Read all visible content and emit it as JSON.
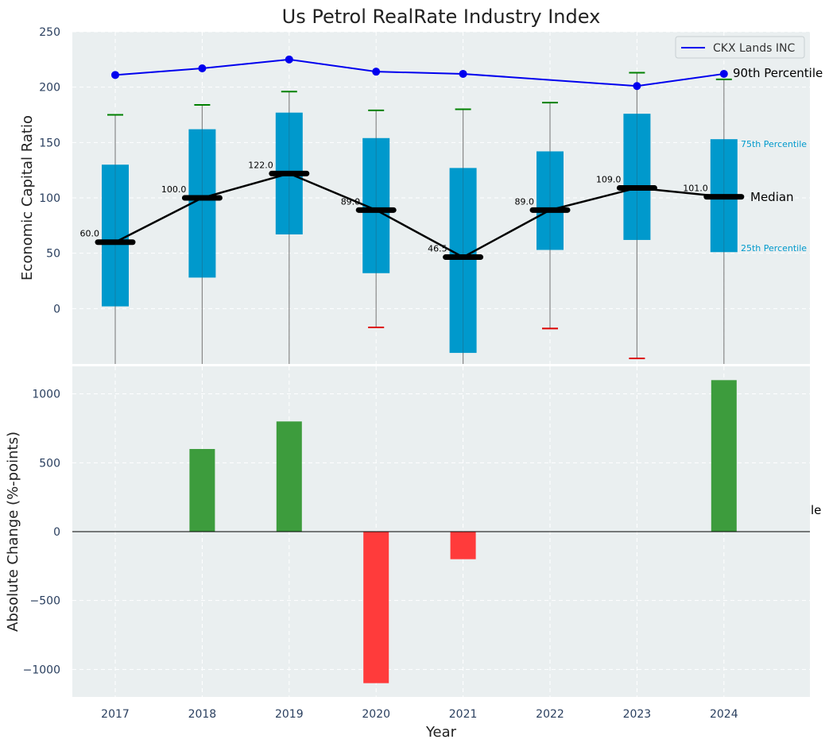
{
  "chart_data": [
    {
      "type": "box",
      "title": "Us Petrol RealRate Industry Index",
      "ylabel": "Economic Capital Ratio",
      "ylim": [
        -50,
        250
      ],
      "yticks": [
        "0",
        "50",
        "100",
        "150",
        "200",
        "250"
      ],
      "categories": [
        "2017",
        "2018",
        "2019",
        "2020",
        "2021",
        "2022",
        "2023",
        "2024"
      ],
      "q1": [
        2,
        28,
        67,
        32,
        -40,
        53,
        62,
        51
      ],
      "q3": [
        130,
        162,
        177,
        154,
        127,
        142,
        176,
        153
      ],
      "median": [
        60.0,
        100.0,
        122.0,
        89.0,
        46.5,
        89.0,
        109.0,
        101.0
      ],
      "median_labels": [
        "60.0",
        "100.0",
        "122.0",
        "89.0",
        "46.5",
        "89.0",
        "109.0",
        "101.0"
      ],
      "whisker_high": [
        175,
        184,
        196,
        179,
        180,
        186,
        213,
        207
      ],
      "whisker_low": [
        null,
        null,
        null,
        -17,
        null,
        -18,
        -45,
        null
      ],
      "line_series": {
        "name": "CKX Lands INC",
        "values": [
          211,
          217,
          225,
          214,
          212,
          null,
          201,
          212
        ],
        "color": "#0000ee"
      },
      "legend": "CKX Lands INC",
      "annotations": {
        "p90": "90th Percentile",
        "p75": "75th Percentile",
        "median": "Median",
        "p25": "25th Percentile",
        "clipped": "le"
      },
      "colors": {
        "box": "#0099cc",
        "whisker_cap_high": "#008000",
        "whisker_cap_low": "#dd0000",
        "median": "#000000",
        "bg": "#eaeff0"
      }
    },
    {
      "type": "bar",
      "xlabel": "Year",
      "ylabel": "Absolute Change (%-points)",
      "ylim": [
        -1200,
        1200
      ],
      "yticks": [
        "−1000",
        "−500",
        "0",
        "500",
        "1000"
      ],
      "categories": [
        "2017",
        "2018",
        "2019",
        "2020",
        "2021",
        "2022",
        "2023",
        "2024"
      ],
      "values": [
        0,
        600,
        800,
        -1100,
        -200,
        0,
        0,
        1100
      ],
      "colors": {
        "positive": "#3d9c3d",
        "negative": "#ff3b3b"
      }
    }
  ]
}
